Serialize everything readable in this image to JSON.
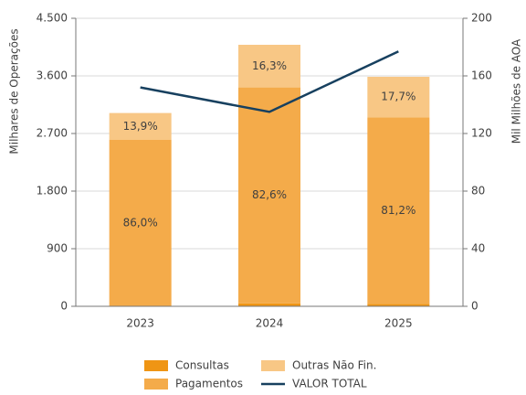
{
  "chart_data": {
    "type": "bar",
    "categories": [
      "2023",
      "2024",
      "2025"
    ],
    "y_label": "Milhares de Operações",
    "y2_label": "Mil Milhões de AOA",
    "stacked": true,
    "grid": true,
    "ylim": [
      0,
      4500
    ],
    "yticks": [
      0,
      900,
      {
        "value": 1800,
        "label": "1.800"
      },
      {
        "value": 2700,
        "label": "2.700"
      },
      {
        "value": 3600,
        "label": "3.600"
      },
      {
        "value": 4500,
        "label": "4.500"
      }
    ],
    "y2lim": [
      0,
      200
    ],
    "y2ticks": [
      0,
      40,
      80,
      120,
      160,
      200
    ],
    "series": [
      {
        "name": "Consultas",
        "color": "#ef9514",
        "values": [
          3,
          45,
          39
        ]
      },
      {
        "name": "Pagamentos",
        "color": "#f4ab4a",
        "values": [
          2597,
          3375,
          2912
        ],
        "share_labels": [
          "86,0%",
          "82,6%",
          "81,2%"
        ]
      },
      {
        "name": "Outras Não Fin.",
        "color": "#f8c785",
        "values": [
          420,
          666,
          635
        ],
        "share_labels": [
          "13,9%",
          "16,3%",
          "17,7%"
        ]
      },
      {
        "name": "VALOR TOTAL",
        "type": "line",
        "axis": "y2",
        "color": "#17405f",
        "values": [
          152,
          135,
          177
        ]
      }
    ]
  }
}
